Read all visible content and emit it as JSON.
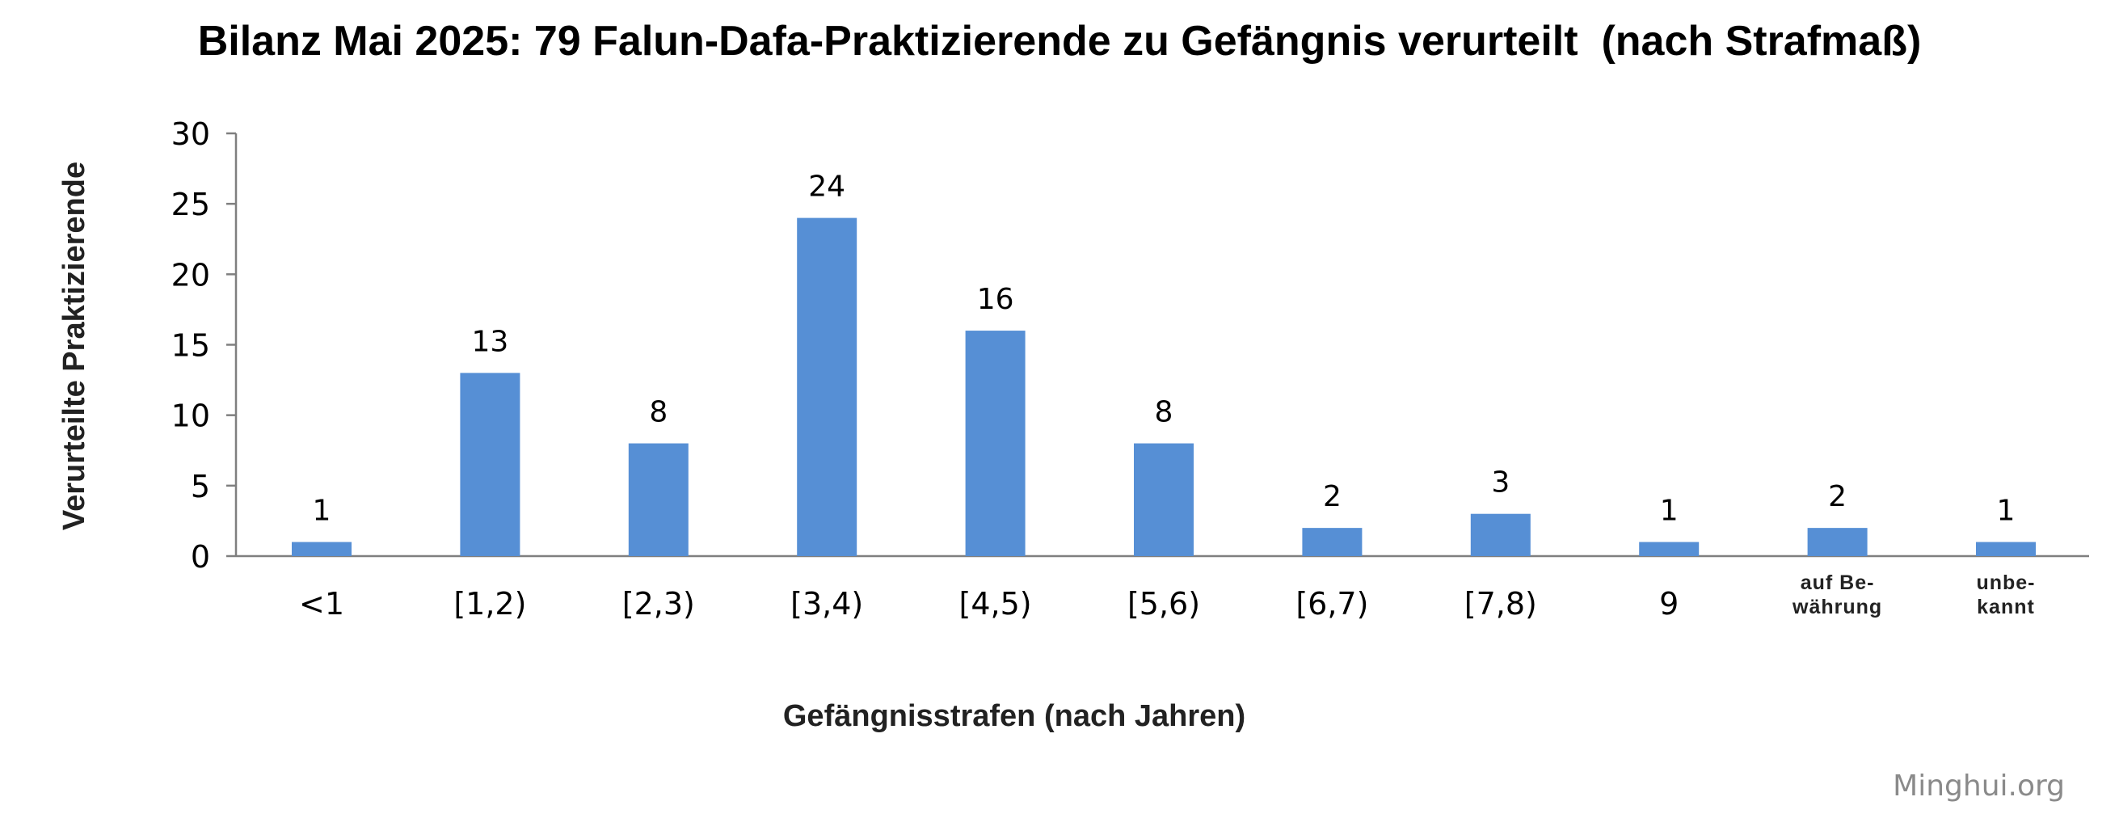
{
  "chart_data": {
    "type": "bar",
    "title": "Bilanz Mai 2025: 79 Falun-Dafa-Praktizierende zu Gefängnis verurteilt  (nach Strafmaß)",
    "xlabel": "Gefängnisstrafen (nach Jahren)",
    "ylabel": "Verurteilte Praktizierende",
    "ylim": [
      0,
      30
    ],
    "yticks": [
      0,
      5,
      10,
      15,
      20,
      25,
      30
    ],
    "categories": [
      "<1",
      "[1,2)",
      "[2,3)",
      "[3,4)",
      "[4,5)",
      "[5,6)",
      "[6,7)",
      "[7,8)",
      "9",
      "auf Be-\nwährung",
      "unbe-\nkannt"
    ],
    "values": [
      1,
      13,
      8,
      24,
      16,
      8,
      2,
      3,
      1,
      2,
      1
    ],
    "bar_color": "#568fd5",
    "grid": false,
    "legend": "none"
  },
  "watermark": "Minghui.org"
}
